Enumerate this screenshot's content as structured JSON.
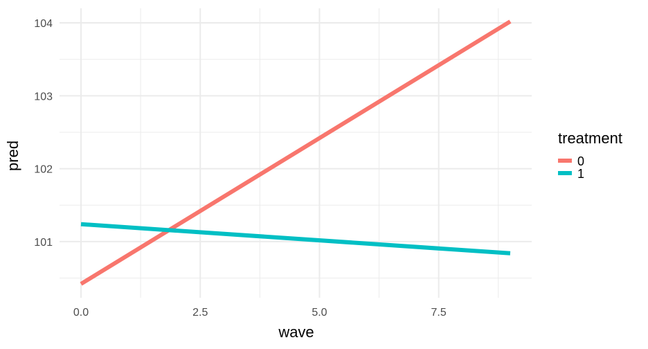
{
  "chart_data": {
    "type": "line",
    "xlabel": "wave",
    "ylabel": "pred",
    "xlim": [
      -0.45,
      9.45
    ],
    "ylim": [
      100.23,
      104.2
    ],
    "x_ticks": [
      0,
      2.5,
      5,
      7.5
    ],
    "x_tick_labels": [
      "0.0",
      "2.5",
      "5.0",
      "7.5"
    ],
    "x_minor_ticks": [
      1.25,
      3.75,
      6.25,
      8.75
    ],
    "y_ticks": [
      101,
      102,
      103,
      104
    ],
    "y_tick_labels": [
      "101",
      "102",
      "103",
      "104"
    ],
    "y_minor_ticks": [
      100.5,
      101.5,
      102.5,
      103.5
    ],
    "grid": true,
    "legend": {
      "title": "treatment",
      "position": "right"
    },
    "series": [
      {
        "name": "0",
        "color": "#F8766D",
        "x": [
          0,
          9
        ],
        "y": [
          100.42,
          104.02
        ]
      },
      {
        "name": "1",
        "color": "#00BFC4",
        "x": [
          0,
          9
        ],
        "y": [
          101.24,
          100.84
        ]
      }
    ]
  }
}
